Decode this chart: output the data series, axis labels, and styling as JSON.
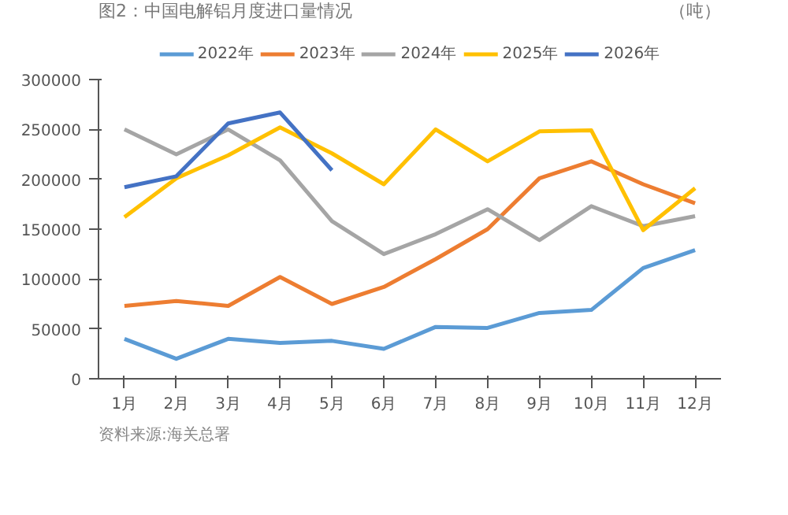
{
  "chart_data": {
    "type": "line",
    "title": "图2：中国电解铝月度进口量情况",
    "ylabel": "（吨）",
    "categories": [
      "1月",
      "2月",
      "3月",
      "4月",
      "5月",
      "6月",
      "7月",
      "8月",
      "9月",
      "10月",
      "11月",
      "12月"
    ],
    "series": [
      {
        "name": "2022年",
        "color": "#5b9bd5",
        "values": [
          40000,
          20000,
          40000,
          36000,
          38000,
          30000,
          52000,
          51000,
          66000,
          69000,
          111000,
          129000
        ]
      },
      {
        "name": "2023年",
        "color": "#ed7d31",
        "values": [
          73000,
          78000,
          73000,
          102000,
          75000,
          92000,
          120000,
          150000,
          201000,
          218000,
          195000,
          176000
        ]
      },
      {
        "name": "2024年",
        "color": "#a5a5a5",
        "values": [
          250000,
          225000,
          250000,
          219000,
          158000,
          125000,
          145000,
          170000,
          139000,
          173000,
          153000,
          163000
        ]
      },
      {
        "name": "2025年",
        "color": "#ffc000",
        "values": [
          162000,
          201000,
          224000,
          252000,
          226000,
          195000,
          250000,
          218000,
          248000,
          249000,
          149000,
          191000
        ]
      },
      {
        "name": "2026年",
        "color": "#4472c4",
        "values": [
          192000,
          203000,
          256000,
          267000,
          209000,
          null,
          null,
          null,
          null,
          null,
          null,
          null
        ]
      }
    ],
    "ylim": [
      0,
      300000
    ],
    "yticks": [
      0,
      50000,
      100000,
      150000,
      200000,
      250000,
      300000
    ],
    "grid": false,
    "legend": "top",
    "marker": "none",
    "line_style": "solid",
    "annotations": [
      "资料来源:海关总署"
    ]
  }
}
